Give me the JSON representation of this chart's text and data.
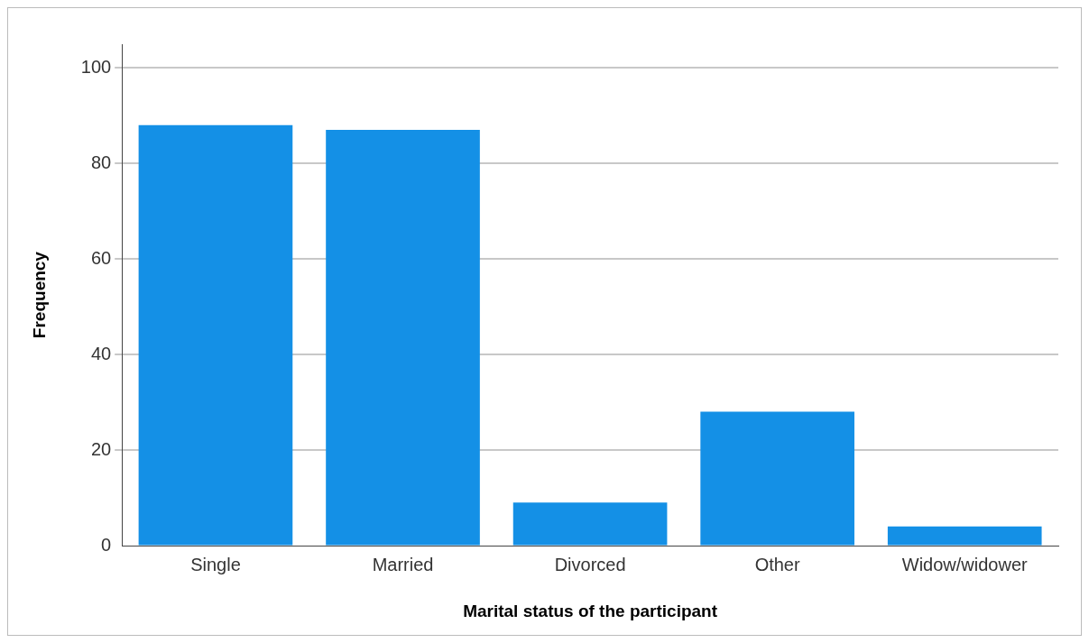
{
  "chart_data": {
    "type": "bar",
    "xlabel": "Marital status of the participant",
    "ylabel": "Frequency",
    "categories": [
      "Single",
      "Married",
      "Divorced",
      "Other",
      "Widow/widower"
    ],
    "values": [
      88,
      87,
      9,
      28,
      4
    ],
    "color": "#1490e6",
    "ylim": [
      0,
      105
    ],
    "yticks": [
      0,
      20,
      40,
      60,
      80,
      100
    ],
    "grid": "y",
    "legend": false
  }
}
